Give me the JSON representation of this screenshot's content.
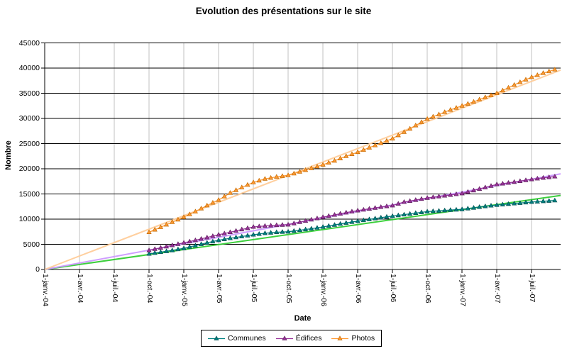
{
  "title": "Evolution des présentations sur le site",
  "chart_data": {
    "type": "line",
    "title": "Evolution des présentations sur le site",
    "xlabel": "Date",
    "ylabel": "Nombre",
    "ylim": [
      0,
      45000
    ],
    "ytick_step": 5000,
    "ytick_labels": [
      "0",
      "5000",
      "10000",
      "15000",
      "20000",
      "25000",
      "30000",
      "35000",
      "40000",
      "45000"
    ],
    "xtick_labels": [
      "1-janv.-04",
      "1-avr.-04",
      "1-juil.-04",
      "1-oct.-04",
      "1-janv.-05",
      "1-avr.-05",
      "1-juil.-05",
      "1-oct.-05",
      "1-janv.-06",
      "1-avr.-06",
      "1-juil.-06",
      "1-oct.-06",
      "1-janv.-07",
      "1-avr.-07",
      "1-juil.-07"
    ],
    "xtick_months": [
      0,
      3,
      6,
      9,
      12,
      15,
      18,
      21,
      24,
      27,
      30,
      33,
      36,
      39,
      42
    ],
    "x_months_since_jan04": [
      9,
      10,
      11,
      12,
      13,
      14,
      15,
      16,
      17,
      18,
      19,
      20,
      21,
      22,
      23,
      24,
      25,
      26,
      27,
      28,
      29,
      30,
      31,
      32,
      33,
      34,
      35,
      36,
      37,
      38,
      39,
      40,
      41,
      42,
      43,
      44
    ],
    "grid": {
      "horizontal_color": "#000000",
      "vertical_color": "#c0c0c0"
    },
    "legend_position": "bottom-center",
    "series": [
      {
        "name": "Communes",
        "color": "#008080",
        "marker": "triangle",
        "marker_stroke": "#004f4f",
        "values": [
          3100,
          3450,
          3800,
          4200,
          4750,
          5300,
          5800,
          6200,
          6550,
          6900,
          7200,
          7400,
          7500,
          7800,
          8100,
          8450,
          8850,
          9250,
          9600,
          9950,
          10300,
          10600,
          10900,
          11200,
          11500,
          11650,
          11800,
          11950,
          12250,
          12550,
          12800,
          13000,
          13200,
          13400,
          13550,
          13700
        ]
      },
      {
        "name": "Édifices",
        "color": "#993399",
        "marker": "triangle",
        "marker_stroke": "#5c1f5c",
        "values": [
          3800,
          4300,
          4800,
          5300,
          5800,
          6350,
          6900,
          7400,
          7950,
          8450,
          8650,
          8800,
          8900,
          9400,
          9900,
          10400,
          10850,
          11300,
          11700,
          12050,
          12400,
          12700,
          13400,
          13800,
          14200,
          14500,
          14800,
          15100,
          15700,
          16300,
          16900,
          17200,
          17550,
          17900,
          18200,
          18450
        ]
      },
      {
        "name": "Photos",
        "color": "#ff9933",
        "marker": "triangle",
        "marker_stroke": "#c26a00",
        "values": [
          7400,
          8400,
          9400,
          10400,
          11500,
          12700,
          13800,
          15200,
          16300,
          17300,
          18000,
          18400,
          18700,
          19400,
          20100,
          20800,
          21600,
          22500,
          23300,
          24200,
          25100,
          26000,
          27300,
          28600,
          29900,
          30800,
          31700,
          32500,
          33300,
          34200,
          35000,
          36100,
          37200,
          38200,
          39000,
          39700
        ]
      }
    ],
    "trendlines": [
      {
        "series": "Communes",
        "color": "#33cc33",
        "start_month": 0,
        "start_value": 0,
        "end_month": 44.5,
        "end_value": 14700
      },
      {
        "series": "Édifices",
        "color": "#cc99ff",
        "start_month": 0,
        "start_value": 0,
        "end_month": 44.5,
        "end_value": 19000
      },
      {
        "series": "Photos",
        "color": "#ffcc99",
        "start_month": 0,
        "start_value": 0,
        "end_month": 44.5,
        "end_value": 39600
      }
    ]
  }
}
